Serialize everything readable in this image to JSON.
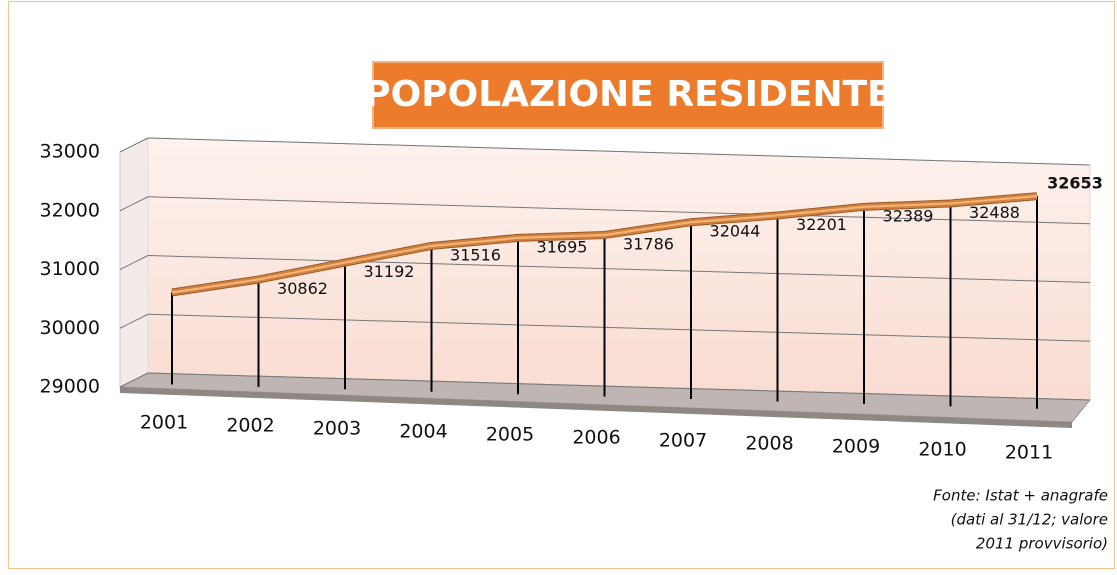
{
  "chart_data": {
    "type": "line",
    "title": "POPOLAZIONE RESIDENTE",
    "categories": [
      "2001",
      "2002",
      "2003",
      "2004",
      "2005",
      "2006",
      "2007",
      "2008",
      "2009",
      "2010",
      "2011"
    ],
    "values": [
      30600,
      30862,
      31192,
      31516,
      31695,
      31786,
      32044,
      32201,
      32389,
      32488,
      32653
    ],
    "value_labels": [
      null,
      "30862",
      "31192",
      "31516",
      "31695",
      "31786",
      "32044",
      "32201",
      "32389",
      "32488",
      "32653"
    ],
    "color": "#d2823e",
    "ylim": [
      29000,
      33000
    ],
    "yticks": [
      29000,
      30000,
      31000,
      32000,
      33000
    ],
    "grid": true,
    "source": [
      "Fonte: Istat + anagrafe",
      "(dati al 31/12; valore",
      "2011 provvisorio)"
    ]
  }
}
